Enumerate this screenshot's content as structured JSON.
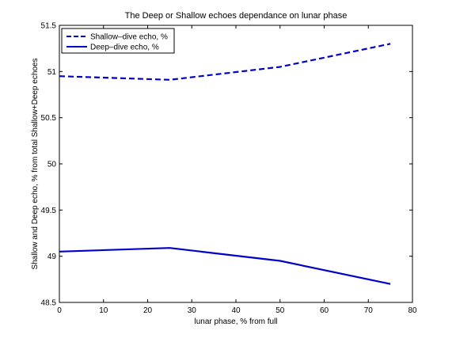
{
  "chart_data": {
    "type": "line",
    "title": "The Deep or Shallow echoes dependance on lunar phase",
    "xlabel": "lunar phase, % from full",
    "ylabel": "Shallow and Deep echo, % from total Shallow+Deep echoes",
    "xlim": [
      0,
      80
    ],
    "ylim": [
      48.5,
      51.5
    ],
    "xticks": [
      0,
      10,
      20,
      30,
      40,
      50,
      60,
      70,
      80
    ],
    "yticks": [
      48.5,
      49,
      49.5,
      50,
      50.5,
      51,
      51.5
    ],
    "xtick_labels": [
      "0",
      "10",
      "20",
      "30",
      "40",
      "50",
      "60",
      "70",
      "80"
    ],
    "ytick_labels": [
      "48.5",
      "49",
      "49.5",
      "50",
      "50.5",
      "51",
      "51.5"
    ],
    "grid": false,
    "legend_position": "top-left",
    "x": [
      0,
      25,
      50,
      75
    ],
    "series": [
      {
        "name": "Shallow–dive echo, %",
        "values": [
          50.95,
          50.91,
          51.05,
          51.3
        ],
        "style": "dashed",
        "color": "#0000cc"
      },
      {
        "name": "Deep–dive echo, %",
        "values": [
          49.05,
          49.09,
          48.95,
          48.7
        ],
        "style": "solid",
        "color": "#0000cc"
      }
    ]
  }
}
